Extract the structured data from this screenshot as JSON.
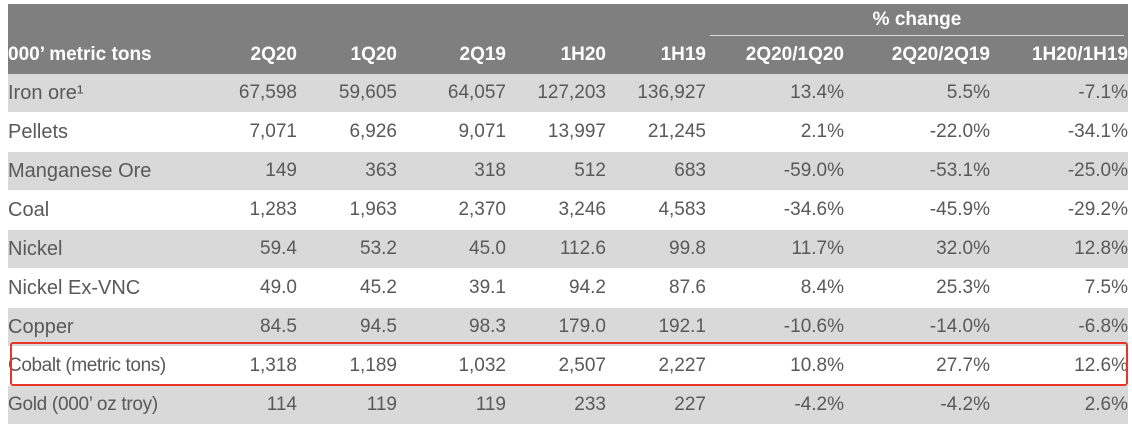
{
  "header": {
    "group_label": "% change",
    "columns": [
      "000’ metric tons",
      "2Q20",
      "1Q20",
      "2Q19",
      "1H20",
      "1H19",
      "2Q20/1Q20",
      "2Q20/2Q19",
      "1H20/1H19"
    ]
  },
  "rows": [
    {
      "name": "Iron ore¹",
      "values": [
        "67,598",
        "59,605",
        "64,057",
        "127,203",
        "136,927",
        "13.4%",
        "5.5%",
        "-7.1%"
      ]
    },
    {
      "name": "Pellets",
      "values": [
        "7,071",
        "6,926",
        "9,071",
        "13,997",
        "21,245",
        "2.1%",
        "-22.0%",
        "-34.1%"
      ]
    },
    {
      "name": "Manganese Ore",
      "values": [
        "149",
        "363",
        "318",
        "512",
        "683",
        "-59.0%",
        "-53.1%",
        "-25.0%"
      ]
    },
    {
      "name": "Coal",
      "values": [
        "1,283",
        "1,963",
        "2,370",
        "3,246",
        "4,583",
        "-34.6%",
        "-45.9%",
        "-29.2%"
      ]
    },
    {
      "name": "Nickel",
      "values": [
        "59.4",
        "53.2",
        "45.0",
        "112.6",
        "99.8",
        "11.7%",
        "32.0%",
        "12.8%"
      ]
    },
    {
      "name": "Nickel Ex-VNC",
      "values": [
        "49.0",
        "45.2",
        "39.1",
        "94.2",
        "87.6",
        "8.4%",
        "25.3%",
        "7.5%"
      ]
    },
    {
      "name": "Copper",
      "values": [
        "84.5",
        "94.5",
        "98.3",
        "179.0",
        "192.1",
        "-10.6%",
        "-14.0%",
        "-6.8%"
      ]
    },
    {
      "name": "Cobalt (metric tons)",
      "values": [
        "1,318",
        "1,189",
        "1,032",
        "2,507",
        "2,227",
        "10.8%",
        "27.7%",
        "12.6%"
      ]
    },
    {
      "name": "Gold (000’ oz troy)",
      "values": [
        "114",
        "119",
        "119",
        "233",
        "227",
        "-4.2%",
        "-4.2%",
        "2.6%"
      ]
    }
  ],
  "colors": {
    "header_bg": "#7f7f7f",
    "stripe_bg": "#d9d9d9",
    "text": "#595959",
    "highlight_border": "#e8362f"
  }
}
